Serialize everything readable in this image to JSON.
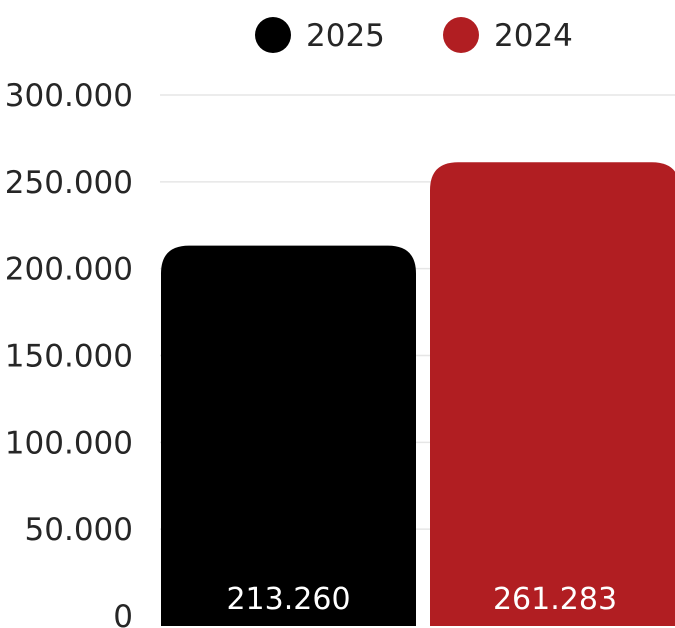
{
  "chart_data": {
    "type": "bar",
    "categories": [
      "2025",
      "2024"
    ],
    "series": [
      {
        "name": "2025",
        "value": 213260,
        "value_label": "213.260",
        "color": "#000000"
      },
      {
        "name": "2024",
        "value": 261283,
        "value_label": "261.283",
        "color": "#b11e22"
      }
    ],
    "ylim": [
      0,
      300000
    ],
    "yticks": [
      0,
      50000,
      100000,
      150000,
      200000,
      250000,
      300000
    ],
    "ytick_labels": [
      "0",
      "50.000",
      "100.000",
      "150.000",
      "200.000",
      "250.000",
      "300.000"
    ],
    "grid": true,
    "legend": {
      "position": "top-center",
      "entries": [
        "2025",
        "2024"
      ]
    },
    "title": "",
    "xlabel": "",
    "ylabel": ""
  }
}
